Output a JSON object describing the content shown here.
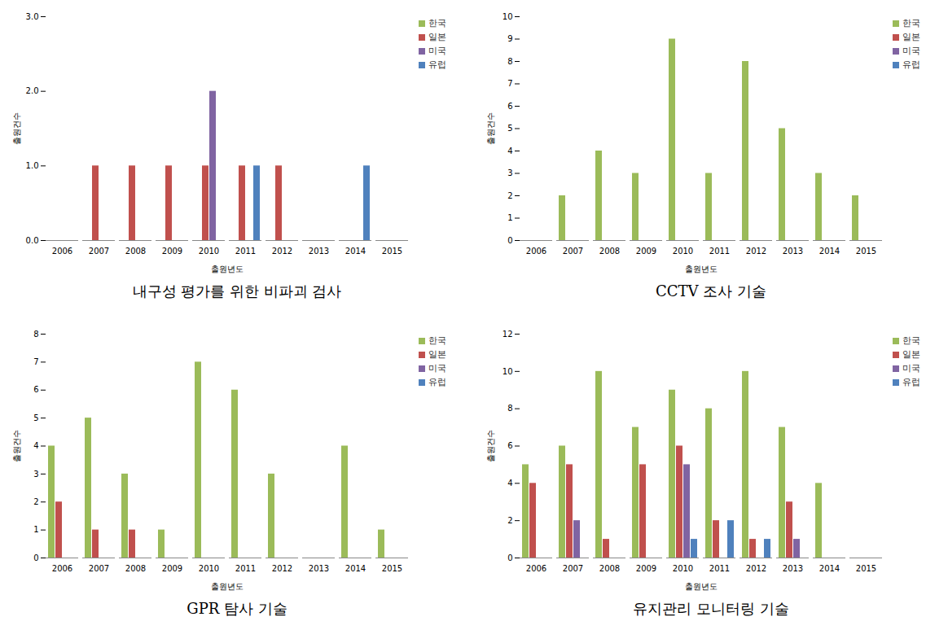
{
  "chart_data": [
    {
      "type": "bar",
      "title": "내구성 평가를 위한 비파괴 검사",
      "x_label": "출원년도",
      "y_label": "출원건수",
      "categories": [
        "2006",
        "2007",
        "2008",
        "2009",
        "2010",
        "2011",
        "2012",
        "2013",
        "2014",
        "2015"
      ],
      "series": [
        {
          "name": "한국",
          "color": "#9bbb59",
          "values": [
            0,
            0,
            0,
            0,
            0,
            0,
            0,
            0,
            0,
            0
          ]
        },
        {
          "name": "일본",
          "color": "#c0504d",
          "values": [
            0,
            1,
            1,
            1,
            1,
            1,
            1,
            0,
            0,
            0
          ]
        },
        {
          "name": "미국",
          "color": "#8064a2",
          "values": [
            0,
            0,
            0,
            0,
            2,
            0,
            0,
            0,
            0,
            0
          ]
        },
        {
          "name": "유럽",
          "color": "#4f81bd",
          "values": [
            0,
            0,
            0,
            0,
            0,
            1,
            0,
            0,
            1,
            0
          ]
        }
      ],
      "ylim": [
        0,
        3
      ],
      "yticks": [
        0,
        1,
        2,
        3
      ],
      "grid": false,
      "legend": "top-right"
    },
    {
      "type": "bar",
      "title": "CCTV 조사 기술",
      "x_label": "출원년도",
      "y_label": "출원건수",
      "categories": [
        "2006",
        "2007",
        "2008",
        "2009",
        "2010",
        "2011",
        "2012",
        "2013",
        "2014",
        "2015"
      ],
      "series": [
        {
          "name": "한국",
          "color": "#9bbb59",
          "values": [
            0,
            2,
            4,
            3,
            9,
            3,
            8,
            5,
            3,
            2
          ]
        },
        {
          "name": "일본",
          "color": "#c0504d",
          "values": [
            0,
            0,
            0,
            0,
            0,
            0,
            0,
            0,
            0,
            0
          ]
        },
        {
          "name": "미국",
          "color": "#8064a2",
          "values": [
            0,
            0,
            0,
            0,
            0,
            0,
            0,
            0,
            0,
            0
          ]
        },
        {
          "name": "유럽",
          "color": "#4f81bd",
          "values": [
            0,
            0,
            0,
            0,
            0,
            0,
            0,
            0,
            0,
            0
          ]
        }
      ],
      "ylim": [
        0,
        10
      ],
      "yticks": [
        0,
        1,
        2,
        3,
        4,
        5,
        6,
        7,
        8,
        9,
        10
      ],
      "grid": false,
      "legend": "top-right"
    },
    {
      "type": "bar",
      "title": "GPR 탐사 기술",
      "x_label": "출원년도",
      "y_label": "출원건수",
      "categories": [
        "2006",
        "2007",
        "2008",
        "2009",
        "2010",
        "2011",
        "2012",
        "2013",
        "2014",
        "2015"
      ],
      "series": [
        {
          "name": "한국",
          "color": "#9bbb59",
          "values": [
            4,
            5,
            3,
            1,
            7,
            6,
            3,
            0,
            4,
            1
          ]
        },
        {
          "name": "일본",
          "color": "#c0504d",
          "values": [
            2,
            1,
            1,
            0,
            0,
            0,
            0,
            0,
            0,
            0
          ]
        },
        {
          "name": "미국",
          "color": "#8064a2",
          "values": [
            0,
            0,
            0,
            0,
            0,
            0,
            0,
            0,
            0,
            0
          ]
        },
        {
          "name": "유럽",
          "color": "#4f81bd",
          "values": [
            0,
            0,
            0,
            0,
            0,
            0,
            0,
            0,
            0,
            0
          ]
        }
      ],
      "ylim": [
        0,
        8
      ],
      "yticks": [
        0,
        1,
        2,
        3,
        4,
        5,
        6,
        7,
        8
      ],
      "grid": false,
      "legend": "top-right"
    },
    {
      "type": "bar",
      "title": "유지관리 모니터링 기술",
      "x_label": "출원년도",
      "y_label": "출원건수",
      "categories": [
        "2006",
        "2007",
        "2008",
        "2009",
        "2010",
        "2011",
        "2012",
        "2013",
        "2014",
        "2015"
      ],
      "series": [
        {
          "name": "한국",
          "color": "#9bbb59",
          "values": [
            5,
            6,
            10,
            7,
            9,
            8,
            10,
            7,
            4,
            0
          ]
        },
        {
          "name": "일본",
          "color": "#c0504d",
          "values": [
            4,
            5,
            1,
            5,
            6,
            2,
            1,
            3,
            0,
            0
          ]
        },
        {
          "name": "미국",
          "color": "#8064a2",
          "values": [
            0,
            2,
            0,
            0,
            5,
            0,
            0,
            1,
            0,
            0
          ]
        },
        {
          "name": "유럽",
          "color": "#4f81bd",
          "values": [
            0,
            0,
            0,
            0,
            1,
            2,
            1,
            0,
            0,
            0
          ]
        }
      ],
      "ylim": [
        0,
        12
      ],
      "yticks": [
        0,
        2,
        4,
        6,
        8,
        10,
        12
      ],
      "grid": false,
      "legend": "top-right"
    }
  ]
}
